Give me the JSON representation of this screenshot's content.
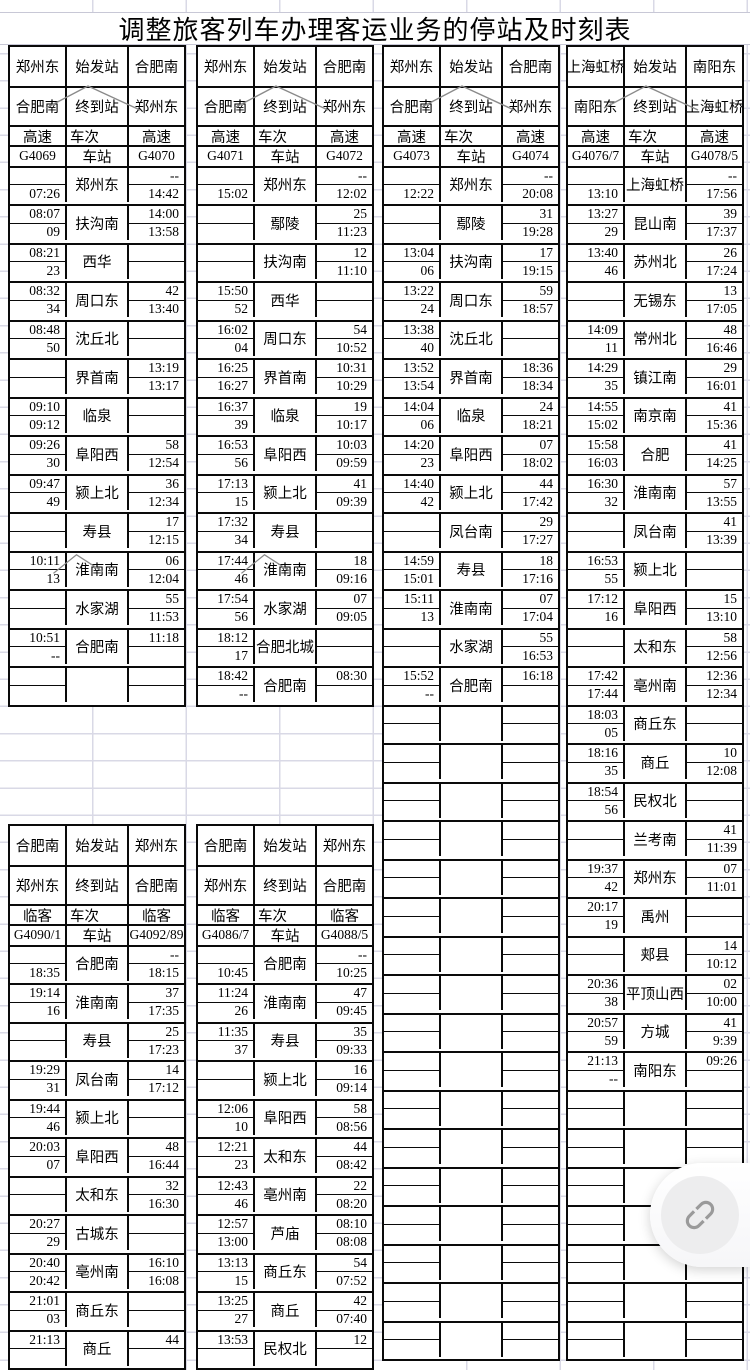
{
  "title": "调整旅客列车办理客运业务的停站及时刻表",
  "labels": {
    "origin": "始发站",
    "terminal": "终到站",
    "train_no": "车次",
    "station": "车站"
  },
  "top_groups": [
    {
      "from": "郑州东",
      "to": "合肥南",
      "class": "高速",
      "train_down": "G4069",
      "train_up": "G4070",
      "caret_header": true,
      "empty_rows": 1,
      "rows": [
        {
          "s": "郑州东",
          "l1": "",
          "l2": "07:26",
          "r1": "--",
          "r2": "14:42"
        },
        {
          "s": "扶沟南",
          "l1": "08:07",
          "l2": "09",
          "r1": "14:00",
          "r2": "13:58"
        },
        {
          "s": "西华",
          "l1": "08:21",
          "l2": "23",
          "r1": "",
          "r2": ""
        },
        {
          "s": "周口东",
          "l1": "08:32",
          "l2": "34",
          "r1": "42",
          "r2": "13:40"
        },
        {
          "s": "沈丘北",
          "l1": "08:48",
          "l2": "50",
          "r1": "",
          "r2": ""
        },
        {
          "s": "界首南",
          "l1": "",
          "l2": "",
          "r1": "13:19",
          "r2": "13:17"
        },
        {
          "s": "临泉",
          "l1": "09:10",
          "l2": "09:12",
          "r1": "",
          "r2": ""
        },
        {
          "s": "阜阳西",
          "l1": "09:26",
          "l2": "30",
          "r1": "58",
          "r2": "12:54"
        },
        {
          "s": "颍上北",
          "l1": "09:47",
          "l2": "49",
          "r1": "36",
          "r2": "12:34"
        },
        {
          "s": "寿县",
          "l1": "",
          "l2": "",
          "r1": "17",
          "r2": "12:15"
        },
        {
          "s": "淮南南",
          "l1": "10:11",
          "l2": "13",
          "r1": "06",
          "r2": "12:04",
          "caret": true
        },
        {
          "s": "水家湖",
          "l1": "",
          "l2": "",
          "r1": "55",
          "r2": "11:53"
        },
        {
          "s": "合肥南",
          "l1": "10:51",
          "l2": "--",
          "r1": "11:18",
          "r2": ""
        }
      ]
    },
    {
      "from": "郑州东",
      "to": "合肥南",
      "class": "高速",
      "train_down": "G4071",
      "train_up": "G4072",
      "caret_header": true,
      "empty_rows": 0,
      "rows": [
        {
          "s": "郑州东",
          "l1": "",
          "l2": "15:02",
          "r1": "--",
          "r2": "12:02"
        },
        {
          "s": "鄢陵",
          "l1": "",
          "l2": "",
          "r1": "25",
          "r2": "11:23"
        },
        {
          "s": "扶沟南",
          "l1": "",
          "l2": "",
          "r1": "12",
          "r2": "11:10"
        },
        {
          "s": "西华",
          "l1": "15:50",
          "l2": "52",
          "r1": "",
          "r2": ""
        },
        {
          "s": "周口东",
          "l1": "16:02",
          "l2": "04",
          "r1": "54",
          "r2": "10:52"
        },
        {
          "s": "界首南",
          "l1": "16:25",
          "l2": "16:27",
          "r1": "10:31",
          "r2": "10:29"
        },
        {
          "s": "临泉",
          "l1": "16:37",
          "l2": "39",
          "r1": "19",
          "r2": "10:17"
        },
        {
          "s": "阜阳西",
          "l1": "16:53",
          "l2": "56",
          "r1": "10:03",
          "r2": "09:59"
        },
        {
          "s": "颍上北",
          "l1": "17:13",
          "l2": "15",
          "r1": "41",
          "r2": "09:39"
        },
        {
          "s": "寿县",
          "l1": "17:32",
          "l2": "34",
          "r1": "",
          "r2": ""
        },
        {
          "s": "淮南南",
          "l1": "17:44",
          "l2": "46",
          "r1": "18",
          "r2": "09:16",
          "caret": true
        },
        {
          "s": "水家湖",
          "l1": "17:54",
          "l2": "56",
          "r1": "07",
          "r2": "09:05"
        },
        {
          "s": "合肥北城",
          "l1": "18:12",
          "l2": "17",
          "r1": "",
          "r2": ""
        },
        {
          "s": "合肥南",
          "l1": "18:42",
          "l2": "--",
          "r1": "08:30",
          "r2": ""
        }
      ]
    },
    {
      "from": "郑州东",
      "to": "合肥南",
      "class": "高速",
      "train_down": "G4073",
      "train_up": "G4074",
      "caret_header": true,
      "empty_rows": 17,
      "rows": [
        {
          "s": "郑州东",
          "l1": "",
          "l2": "12:22",
          "r1": "--",
          "r2": "20:08"
        },
        {
          "s": "鄢陵",
          "l1": "",
          "l2": "",
          "r1": "31",
          "r2": "19:28"
        },
        {
          "s": "扶沟南",
          "l1": "13:04",
          "l2": "06",
          "r1": "17",
          "r2": "19:15"
        },
        {
          "s": "周口东",
          "l1": "13:22",
          "l2": "24",
          "r1": "59",
          "r2": "18:57"
        },
        {
          "s": "沈丘北",
          "l1": "13:38",
          "l2": "40",
          "r1": "",
          "r2": ""
        },
        {
          "s": "界首南",
          "l1": "13:52",
          "l2": "13:54",
          "r1": "18:36",
          "r2": "18:34"
        },
        {
          "s": "临泉",
          "l1": "14:04",
          "l2": "06",
          "r1": "24",
          "r2": "18:21"
        },
        {
          "s": "阜阳西",
          "l1": "14:20",
          "l2": "23",
          "r1": "07",
          "r2": "18:02"
        },
        {
          "s": "颍上北",
          "l1": "14:40",
          "l2": "42",
          "r1": "44",
          "r2": "17:42"
        },
        {
          "s": "凤台南",
          "l1": "",
          "l2": "",
          "r1": "29",
          "r2": "17:27"
        },
        {
          "s": "寿县",
          "l1": "14:59",
          "l2": "15:01",
          "r1": "18",
          "r2": "17:16"
        },
        {
          "s": "淮南南",
          "l1": "15:11",
          "l2": "13",
          "r1": "07",
          "r2": "17:04"
        },
        {
          "s": "水家湖",
          "l1": "",
          "l2": "",
          "r1": "55",
          "r2": "16:53"
        },
        {
          "s": "合肥南",
          "l1": "15:52",
          "l2": "--",
          "r1": "16:18",
          "r2": ""
        }
      ]
    },
    {
      "from": "上海虹桥",
      "to": "南阳东",
      "class": "高速",
      "train_down": "G4076/7",
      "train_up": "G4078/5",
      "caret_header": true,
      "empty_rows": 7,
      "rows": [
        {
          "s": "上海虹桥",
          "l1": "",
          "l2": "13:10",
          "r1": "--",
          "r2": "17:56"
        },
        {
          "s": "昆山南",
          "l1": "13:27",
          "l2": "29",
          "r1": "39",
          "r2": "17:37"
        },
        {
          "s": "苏州北",
          "l1": "13:40",
          "l2": "46",
          "r1": "26",
          "r2": "17:24"
        },
        {
          "s": "无锡东",
          "l1": "",
          "l2": "",
          "r1": "13",
          "r2": "17:05"
        },
        {
          "s": "常州北",
          "l1": "14:09",
          "l2": "11",
          "r1": "48",
          "r2": "16:46"
        },
        {
          "s": "镇江南",
          "l1": "14:29",
          "l2": "35",
          "r1": "29",
          "r2": "16:01"
        },
        {
          "s": "南京南",
          "l1": "14:55",
          "l2": "15:02",
          "r1": "41",
          "r2": "15:36"
        },
        {
          "s": "合肥",
          "l1": "15:58",
          "l2": "16:03",
          "r1": "41",
          "r2": "14:25"
        },
        {
          "s": "淮南南",
          "l1": "16:30",
          "l2": "32",
          "r1": "57",
          "r2": "13:55"
        },
        {
          "s": "凤台南",
          "l1": "",
          "l2": "",
          "r1": "41",
          "r2": "13:39"
        },
        {
          "s": "颍上北",
          "l1": "16:53",
          "l2": "55",
          "r1": "",
          "r2": ""
        },
        {
          "s": "阜阳西",
          "l1": "17:12",
          "l2": "16",
          "r1": "15",
          "r2": "13:10"
        },
        {
          "s": "太和东",
          "l1": "",
          "l2": "",
          "r1": "58",
          "r2": "12:56"
        },
        {
          "s": "亳州南",
          "l1": "17:42",
          "l2": "17:44",
          "r1": "12:36",
          "r2": "12:34"
        },
        {
          "s": "商丘东",
          "l1": "18:03",
          "l2": "05",
          "r1": "",
          "r2": ""
        },
        {
          "s": "商丘",
          "l1": "18:16",
          "l2": "35",
          "r1": "10",
          "r2": "12:08"
        },
        {
          "s": "民权北",
          "l1": "18:54",
          "l2": "56",
          "r1": "",
          "r2": ""
        },
        {
          "s": "兰考南",
          "l1": "",
          "l2": "",
          "r1": "41",
          "r2": "11:39"
        },
        {
          "s": "郑州东",
          "l1": "19:37",
          "l2": "42",
          "r1": "07",
          "r2": "11:01"
        },
        {
          "s": "禹州",
          "l1": "20:17",
          "l2": "19",
          "r1": "",
          "r2": ""
        },
        {
          "s": "郏县",
          "l1": "",
          "l2": "",
          "r1": "14",
          "r2": "10:12"
        },
        {
          "s": "平顶山西",
          "l1": "20:36",
          "l2": "38",
          "r1": "02",
          "r2": "10:00"
        },
        {
          "s": "方城",
          "l1": "20:57",
          "l2": "59",
          "r1": "41",
          "r2": "9:39"
        },
        {
          "s": "南阳东",
          "l1": "21:13",
          "l2": "--",
          "r1": "09:26",
          "r2": ""
        }
      ]
    }
  ],
  "bottom_groups": [
    {
      "from": "合肥南",
      "to": "郑州东",
      "class": "临客",
      "train_down": "G4090/1",
      "train_up": "G4092/89",
      "caret_header": false,
      "empty_rows": 0,
      "rows": [
        {
          "s": "合肥南",
          "l1": "",
          "l2": "18:35",
          "r1": "--",
          "r2": "18:15"
        },
        {
          "s": "淮南南",
          "l1": "19:14",
          "l2": "16",
          "r1": "37",
          "r2": "17:35"
        },
        {
          "s": "寿县",
          "l1": "",
          "l2": "",
          "r1": "25",
          "r2": "17:23"
        },
        {
          "s": "凤台南",
          "l1": "19:29",
          "l2": "31",
          "r1": "14",
          "r2": "17:12"
        },
        {
          "s": "颍上北",
          "l1": "19:44",
          "l2": "46",
          "r1": "",
          "r2": ""
        },
        {
          "s": "阜阳西",
          "l1": "20:03",
          "l2": "07",
          "r1": "48",
          "r2": "16:44"
        },
        {
          "s": "太和东",
          "l1": "",
          "l2": "",
          "r1": "32",
          "r2": "16:30"
        },
        {
          "s": "古城东",
          "l1": "20:27",
          "l2": "29",
          "r1": "",
          "r2": ""
        },
        {
          "s": "亳州南",
          "l1": "20:40",
          "l2": "20:42",
          "r1": "16:10",
          "r2": "16:08"
        },
        {
          "s": "商丘东",
          "l1": "21:01",
          "l2": "03",
          "r1": "",
          "r2": ""
        },
        {
          "s": "商丘",
          "l1": "21:13",
          "l2": "",
          "r1": "44",
          "r2": ""
        }
      ]
    },
    {
      "from": "合肥南",
      "to": "郑州东",
      "class": "临客",
      "train_down": "G4086/7",
      "train_up": "G4088/5",
      "caret_header": false,
      "empty_rows": 0,
      "rows": [
        {
          "s": "合肥南",
          "l1": "",
          "l2": "10:45",
          "r1": "--",
          "r2": "10:25"
        },
        {
          "s": "淮南南",
          "l1": "11:24",
          "l2": "26",
          "r1": "47",
          "r2": "09:45"
        },
        {
          "s": "寿县",
          "l1": "11:35",
          "l2": "37",
          "r1": "35",
          "r2": "09:33"
        },
        {
          "s": "颍上北",
          "l1": "",
          "l2": "",
          "r1": "16",
          "r2": "09:14"
        },
        {
          "s": "阜阳西",
          "l1": "12:06",
          "l2": "10",
          "r1": "58",
          "r2": "08:56"
        },
        {
          "s": "太和东",
          "l1": "12:21",
          "l2": "23",
          "r1": "44",
          "r2": "08:42"
        },
        {
          "s": "亳州南",
          "l1": "12:43",
          "l2": "46",
          "r1": "22",
          "r2": "08:20"
        },
        {
          "s": "芦庙",
          "l1": "12:57",
          "l2": "13:00",
          "r1": "08:10",
          "r2": "08:08"
        },
        {
          "s": "商丘东",
          "l1": "13:13",
          "l2": "15",
          "r1": "54",
          "r2": "07:52"
        },
        {
          "s": "商丘",
          "l1": "13:25",
          "l2": "27",
          "r1": "42",
          "r2": "07:40"
        },
        {
          "s": "民权北",
          "l1": "13:53",
          "l2": "",
          "r1": "12",
          "r2": ""
        }
      ]
    }
  ],
  "float_button": {
    "icon": "link-icon"
  }
}
